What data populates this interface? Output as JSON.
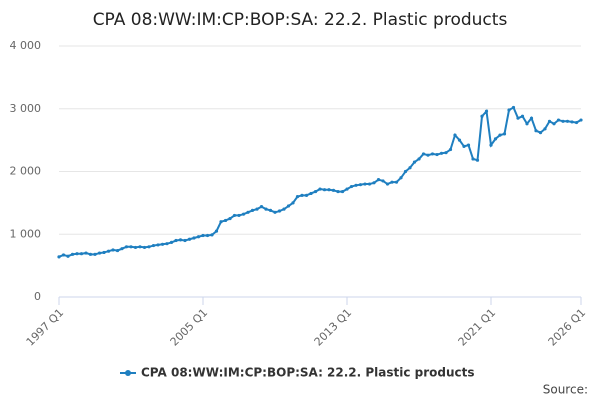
{
  "chart_data": {
    "type": "line",
    "title": "CPA 08:WW:IM:CP:BOP:SA: 22.2. Plastic products",
    "source": "Source:",
    "categories": [
      "1997 Q1",
      null,
      null,
      null,
      null,
      null,
      null,
      null,
      null,
      null,
      null,
      null,
      null,
      null,
      null,
      null,
      null,
      null,
      null,
      null,
      null,
      null,
      null,
      null,
      null,
      null,
      null,
      null,
      null,
      null,
      null,
      null,
      "2005 Q1",
      null,
      null,
      null,
      null,
      null,
      null,
      null,
      null,
      null,
      null,
      null,
      null,
      null,
      null,
      null,
      null,
      null,
      null,
      null,
      null,
      null,
      null,
      null,
      null,
      null,
      null,
      null,
      null,
      null,
      null,
      null,
      "2013 Q1",
      null,
      null,
      null,
      null,
      null,
      null,
      null,
      null,
      null,
      null,
      null,
      null,
      null,
      null,
      null,
      null,
      null,
      null,
      null,
      null,
      null,
      null,
      null,
      null,
      null,
      null,
      null,
      null,
      null,
      null,
      null,
      "2021 Q1",
      null,
      null,
      null,
      null,
      null,
      null,
      null,
      null,
      null,
      null,
      null,
      null,
      null,
      null,
      null,
      null,
      null,
      null,
      null,
      "2026 Q1"
    ],
    "series": [
      {
        "name": "CPA 08:WW:IM:CP:BOP:SA: 22.2. Plastic products",
        "color": "#1f7fc0",
        "values": [
          640,
          670,
          650,
          680,
          690,
          690,
          700,
          680,
          680,
          700,
          710,
          730,
          750,
          740,
          770,
          800,
          800,
          790,
          800,
          790,
          800,
          820,
          830,
          840,
          850,
          870,
          900,
          910,
          900,
          920,
          940,
          960,
          980,
          980,
          990,
          1050,
          1200,
          1220,
          1250,
          1300,
          1300,
          1320,
          1350,
          1380,
          1400,
          1440,
          1400,
          1380,
          1350,
          1370,
          1400,
          1450,
          1500,
          1600,
          1620,
          1620,
          1650,
          1680,
          1720,
          1710,
          1710,
          1700,
          1680,
          1680,
          1720,
          1760,
          1780,
          1790,
          1800,
          1800,
          1820,
          1870,
          1850,
          1800,
          1830,
          1830,
          1900,
          2000,
          2060,
          2150,
          2200,
          2280,
          2260,
          2280,
          2270,
          2290,
          2300,
          2350,
          2580,
          2500,
          2400,
          2420,
          2200,
          2180,
          2880,
          2960,
          2420,
          2520,
          2580,
          2600,
          2980,
          3020,
          2850,
          2880,
          2760,
          2850,
          2650,
          2620,
          2680,
          2800,
          2760,
          2820,
          2800,
          2800,
          2790,
          2780,
          2820
        ]
      }
    ],
    "ylim": [
      0,
      4000
    ],
    "yticks": [
      0,
      {
        "value": 1000,
        "label": "1 000"
      },
      {
        "value": 2000,
        "label": "2 000"
      },
      {
        "value": 3000,
        "label": "3 000"
      },
      {
        "value": 4000,
        "label": "4 000"
      }
    ],
    "grid": true,
    "legend": "bottom"
  }
}
